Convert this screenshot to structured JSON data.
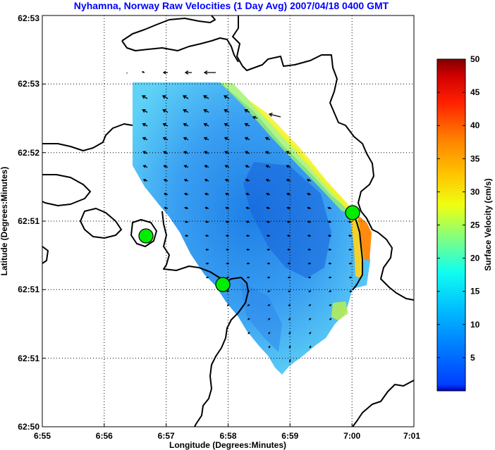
{
  "chart_data": {
    "type": "heatmap",
    "title": "Nyhamna, Norway Raw Velocities (1 Day Avg) 2007/04/18 0400 GMT",
    "xlabel": "Longitude (Degrees:Minutes)",
    "ylabel": "Latitude (Degrees:Minutes)",
    "x_ticks": [
      "6:55",
      "6:56",
      "6:57",
      "6:58",
      "6:59",
      "7:00",
      "7:01"
    ],
    "y_ticks": [
      "62:53",
      "62:53",
      "62:52",
      "62:51",
      "62:51",
      "62:51",
      "62:50"
    ],
    "grid": true,
    "colorbar": {
      "label": "Surface Velocity (cm/s)",
      "ticks": [
        "5",
        "10",
        "15",
        "20",
        "25",
        "30",
        "35",
        "40",
        "45",
        "50"
      ],
      "min": 0,
      "max": 50,
      "colormap": "jet"
    },
    "markers": [
      {
        "name": "site-1",
        "color": "#00ee00"
      },
      {
        "name": "site-2",
        "color": "#00ee00"
      },
      {
        "name": "site-3",
        "color": "#00ee00"
      }
    ]
  }
}
